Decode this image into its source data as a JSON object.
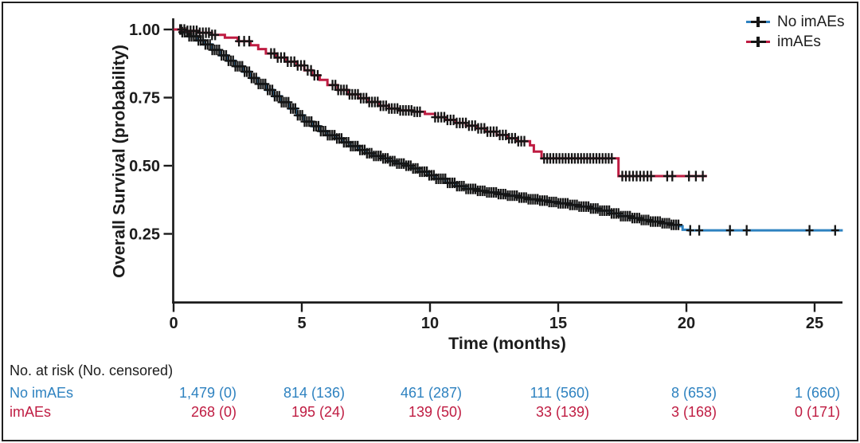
{
  "figure": {
    "background": "#ffffff",
    "border_color": "#1f1f1f",
    "ink_color": "#1c1c1c",
    "censor_color": "#151515"
  },
  "legend": {
    "items": [
      {
        "id": "no-imaes",
        "label": "No imAEs",
        "color": "#2e82c0"
      },
      {
        "id": "imaes",
        "label": "imAEs",
        "color": "#bf1c42"
      }
    ]
  },
  "chart_data": {
    "type": "line",
    "subtype": "kaplan_meier_step",
    "title": "",
    "xlabel": "Time (months)",
    "ylabel": "Overall Survival (probability)",
    "xlim": [
      0,
      26.2
    ],
    "ylim": [
      0,
      1.03
    ],
    "x_ticks": [
      0,
      5,
      10,
      15,
      20,
      25
    ],
    "x_tick_labels": [
      "0",
      "5",
      "10",
      "15",
      "20",
      "25"
    ],
    "y_ticks": [
      1.0,
      0.75,
      0.5,
      0.25
    ],
    "y_tick_labels": [
      "1.00",
      "0.75",
      "0.50",
      "0.25"
    ],
    "grid": false,
    "legend_position": "top-right",
    "series": [
      {
        "id": "no-imaes",
        "name": "No imAEs",
        "color": "#2e82c0",
        "points": [
          [
            0,
            1.0
          ],
          [
            0.3,
            0.99
          ],
          [
            0.6,
            0.975
          ],
          [
            0.9,
            0.96
          ],
          [
            1.2,
            0.945
          ],
          [
            1.5,
            0.925
          ],
          [
            1.8,
            0.905
          ],
          [
            2.1,
            0.885
          ],
          [
            2.4,
            0.865
          ],
          [
            2.7,
            0.845
          ],
          [
            3.0,
            0.822
          ],
          [
            3.3,
            0.8
          ],
          [
            3.6,
            0.778
          ],
          [
            3.9,
            0.755
          ],
          [
            4.2,
            0.733
          ],
          [
            4.5,
            0.71
          ],
          [
            4.8,
            0.685
          ],
          [
            5.1,
            0.662
          ],
          [
            5.4,
            0.645
          ],
          [
            5.7,
            0.627
          ],
          [
            6.0,
            0.612
          ],
          [
            6.3,
            0.6
          ],
          [
            6.6,
            0.586
          ],
          [
            6.9,
            0.572
          ],
          [
            7.2,
            0.558
          ],
          [
            7.5,
            0.546
          ],
          [
            7.8,
            0.536
          ],
          [
            8.1,
            0.527
          ],
          [
            8.4,
            0.517
          ],
          [
            8.7,
            0.508
          ],
          [
            9.0,
            0.5
          ],
          [
            9.3,
            0.49
          ],
          [
            9.6,
            0.478
          ],
          [
            9.9,
            0.465
          ],
          [
            10.2,
            0.452
          ],
          [
            10.6,
            0.437
          ],
          [
            11.0,
            0.425
          ],
          [
            11.4,
            0.415
          ],
          [
            11.8,
            0.408
          ],
          [
            12.2,
            0.402
          ],
          [
            12.6,
            0.396
          ],
          [
            13.0,
            0.39
          ],
          [
            13.4,
            0.383
          ],
          [
            13.8,
            0.377
          ],
          [
            14.2,
            0.372
          ],
          [
            14.6,
            0.367
          ],
          [
            15.0,
            0.362
          ],
          [
            15.4,
            0.356
          ],
          [
            15.8,
            0.35
          ],
          [
            16.2,
            0.343
          ],
          [
            16.6,
            0.335
          ],
          [
            17.0,
            0.325
          ],
          [
            17.4,
            0.315
          ],
          [
            17.8,
            0.308
          ],
          [
            18.2,
            0.301
          ],
          [
            18.6,
            0.295
          ],
          [
            19.0,
            0.289
          ],
          [
            19.4,
            0.283
          ],
          [
            19.7,
            0.278
          ],
          [
            19.85,
            0.265
          ],
          [
            20.1,
            0.263
          ],
          [
            26.1,
            0.263
          ]
        ],
        "censor_runs": [
          {
            "from": 0.25,
            "to": 19.7,
            "step": 0.09
          }
        ],
        "censor_ticks": [
          20.15,
          20.5,
          21.7,
          22.35,
          24.8,
          25.8
        ]
      },
      {
        "id": "imaes",
        "name": "imAEs",
        "color": "#bf1c42",
        "points": [
          [
            0,
            1.0
          ],
          [
            0.5,
            0.995
          ],
          [
            1.0,
            0.988
          ],
          [
            1.5,
            0.98
          ],
          [
            2.0,
            0.97
          ],
          [
            2.5,
            0.957
          ],
          [
            3.0,
            0.942
          ],
          [
            3.3,
            0.928
          ],
          [
            3.6,
            0.912
          ],
          [
            4.0,
            0.897
          ],
          [
            4.4,
            0.882
          ],
          [
            4.8,
            0.868
          ],
          [
            5.1,
            0.85
          ],
          [
            5.4,
            0.832
          ],
          [
            5.7,
            0.815
          ],
          [
            6.0,
            0.796
          ],
          [
            6.4,
            0.778
          ],
          [
            6.8,
            0.762
          ],
          [
            7.2,
            0.748
          ],
          [
            7.6,
            0.734
          ],
          [
            8.0,
            0.72
          ],
          [
            8.4,
            0.71
          ],
          [
            8.8,
            0.703
          ],
          [
            9.3,
            0.698
          ],
          [
            9.8,
            0.69
          ],
          [
            10.2,
            0.678
          ],
          [
            10.6,
            0.668
          ],
          [
            11.0,
            0.657
          ],
          [
            11.4,
            0.647
          ],
          [
            11.8,
            0.637
          ],
          [
            12.2,
            0.625
          ],
          [
            12.6,
            0.613
          ],
          [
            13.0,
            0.601
          ],
          [
            13.4,
            0.59
          ],
          [
            13.9,
            0.575
          ],
          [
            14.05,
            0.552
          ],
          [
            14.35,
            0.527
          ],
          [
            17.15,
            0.527
          ],
          [
            17.35,
            0.462
          ],
          [
            20.8,
            0.462
          ]
        ],
        "censor_runs": [
          {
            "from": 0.3,
            "to": 1.62,
            "step": 0.12
          },
          {
            "from": 2.55,
            "to": 2.95,
            "step": 0.2
          },
          {
            "from": 3.8,
            "to": 5.62,
            "step": 0.13
          },
          {
            "from": 6.2,
            "to": 9.7,
            "step": 0.11
          },
          {
            "from": 10.2,
            "to": 13.75,
            "step": 0.12
          },
          {
            "from": 14.45,
            "to": 17.1,
            "step": 0.12
          },
          {
            "from": 17.5,
            "to": 18.62,
            "step": 0.14
          },
          {
            "from": 19.25,
            "to": 19.45,
            "step": 0.2
          },
          {
            "from": 20.1,
            "to": 20.68,
            "step": 0.27
          }
        ],
        "censor_ticks": []
      }
    ]
  },
  "risk_table": {
    "header": "No. at risk (No. censored)",
    "time_points": [
      0,
      5,
      10,
      15,
      20,
      25
    ],
    "rows": [
      {
        "id": "no-imaes",
        "label": "No imAEs",
        "color": "#2e82c0",
        "values": [
          "1,479 (0)",
          "814 (136)",
          "461 (287)",
          "111 (560)",
          "8 (653)",
          "1 (660)"
        ]
      },
      {
        "id": "imaes",
        "label": "imAEs",
        "color": "#bf1c42",
        "values": [
          "268 (0)",
          "195 (24)",
          "139 (50)",
          "33 (139)",
          "3 (168)",
          "0 (171)"
        ]
      }
    ]
  }
}
